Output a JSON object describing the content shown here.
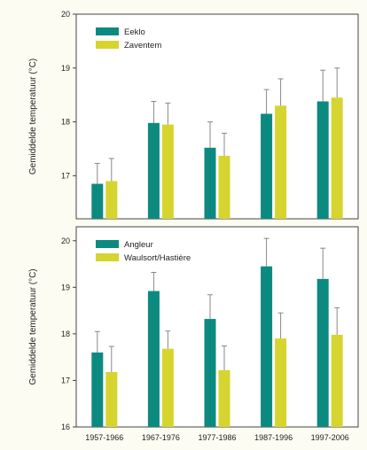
{
  "colors": {
    "series_a": "#0d8a80",
    "series_b": "#d6d42f",
    "panel_bg": "#ffffff",
    "border": "#444444",
    "error_bar": "#888888"
  },
  "chart_data": [
    {
      "type": "bar",
      "title": "",
      "xlabel": "",
      "ylabel": "Gemiddelde temperatuur (°C)",
      "ylim": [
        16.2,
        20
      ],
      "yticks": [
        "17",
        "18",
        "19",
        "20"
      ],
      "categories": [
        "1957-1966",
        "1967-1976",
        "1977-1986",
        "1987-1996",
        "1997-2006"
      ],
      "legend_position": "top-left",
      "series": [
        {
          "name": "Eeklo",
          "values": [
            16.85,
            17.98,
            17.52,
            18.15,
            18.38
          ],
          "error": [
            0.38,
            0.4,
            0.48,
            0.45,
            0.58
          ]
        },
        {
          "name": "Zaventem",
          "values": [
            16.9,
            17.95,
            17.37,
            18.3,
            18.45
          ],
          "error": [
            0.42,
            0.4,
            0.42,
            0.5,
            0.55
          ]
        }
      ]
    },
    {
      "type": "bar",
      "title": "",
      "xlabel": "",
      "ylabel": "Gemiddelde temperatuur (°C)",
      "ylim": [
        16,
        20.3
      ],
      "yticks": [
        "16",
        "17",
        "18",
        "19",
        "20"
      ],
      "categories": [
        "1957-1966",
        "1967-1976",
        "1977-1986",
        "1987-1996",
        "1997-2006"
      ],
      "legend_position": "top-left",
      "series": [
        {
          "name": "Angleur",
          "values": [
            17.6,
            18.92,
            18.32,
            19.45,
            19.18
          ],
          "error": [
            0.45,
            0.4,
            0.52,
            0.6,
            0.66
          ]
        },
        {
          "name": "Waulsort/Hastière",
          "values": [
            17.18,
            17.68,
            17.22,
            17.9,
            17.98
          ],
          "error": [
            0.55,
            0.38,
            0.52,
            0.55,
            0.58
          ]
        }
      ]
    }
  ]
}
